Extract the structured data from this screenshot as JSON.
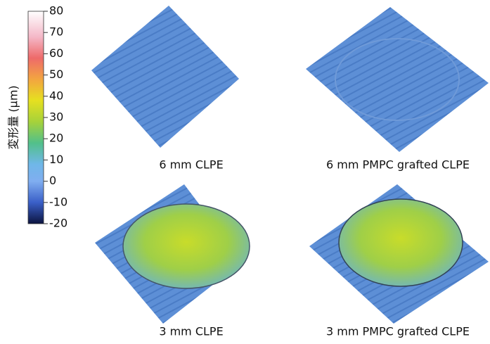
{
  "colorbar": {
    "label": "変形量 (μm)",
    "range": [
      -20,
      80
    ],
    "ticks": [
      80,
      70,
      60,
      50,
      40,
      30,
      20,
      10,
      0,
      -10,
      -20
    ]
  },
  "panels": [
    {
      "caption": "6 mm CLPE"
    },
    {
      "caption": "6 mm PMPC grafted CLPE"
    },
    {
      "caption": "3 mm CLPE"
    },
    {
      "caption": "3 mm PMPC grafted CLPE"
    }
  ]
}
